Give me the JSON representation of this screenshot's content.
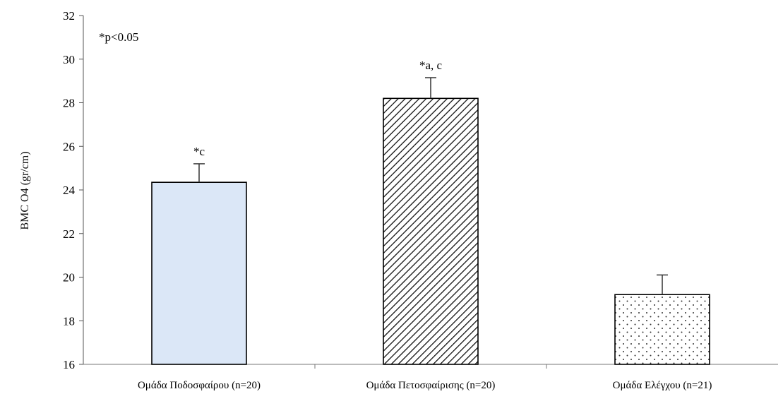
{
  "chart_data": {
    "type": "bar",
    "ylabel": "BMC O4 (gr/cm)",
    "xlabel": "",
    "ylim": [
      16,
      32
    ],
    "yticks": [
      16,
      18,
      20,
      22,
      24,
      26,
      28,
      30,
      32
    ],
    "ytick_labels": [
      "16",
      "18",
      "20",
      "22",
      "24",
      "26",
      "28",
      "30",
      "32"
    ],
    "categories": [
      "Ομάδα Ποδοσφαίρου (n=20)",
      "Ομάδα Πετοσφαίρισης (n=20)",
      "Ομάδα Ελέγχου (n=21)"
    ],
    "values": [
      24.35,
      28.2,
      19.2
    ],
    "error": [
      0.85,
      0.95,
      0.9
    ],
    "bar_annotations": [
      "*c",
      "*a, c",
      ""
    ],
    "fill_styles": [
      "solid-light-blue",
      "diagonal-hatch",
      "dots"
    ],
    "colors": {
      "bar1_fill": "#dbe7f7",
      "hatch_stroke": "#000000",
      "dot_fill": "#333333"
    },
    "note": "*p<0.05",
    "grid": false,
    "legend": "none"
  }
}
